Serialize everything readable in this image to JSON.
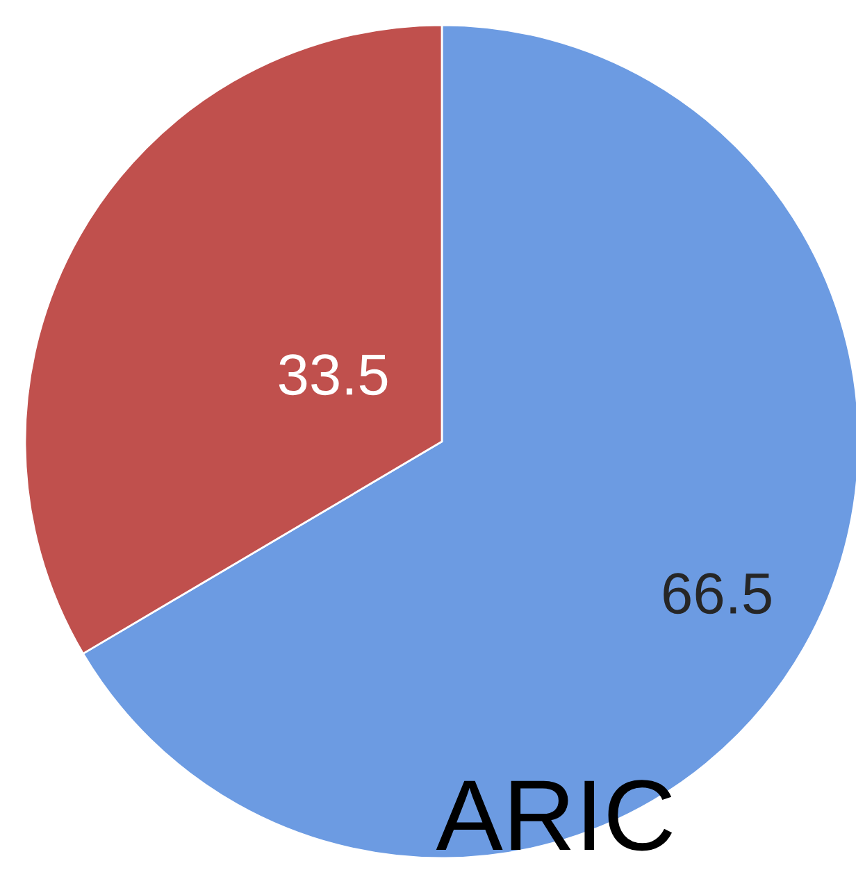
{
  "chart_data": {
    "type": "pie",
    "title": "ARIC",
    "categories": [
      null,
      null
    ],
    "values": [
      66.5,
      33.5
    ],
    "colors": [
      "#6c9be2",
      "#c0504d"
    ],
    "data_labels": true
  }
}
